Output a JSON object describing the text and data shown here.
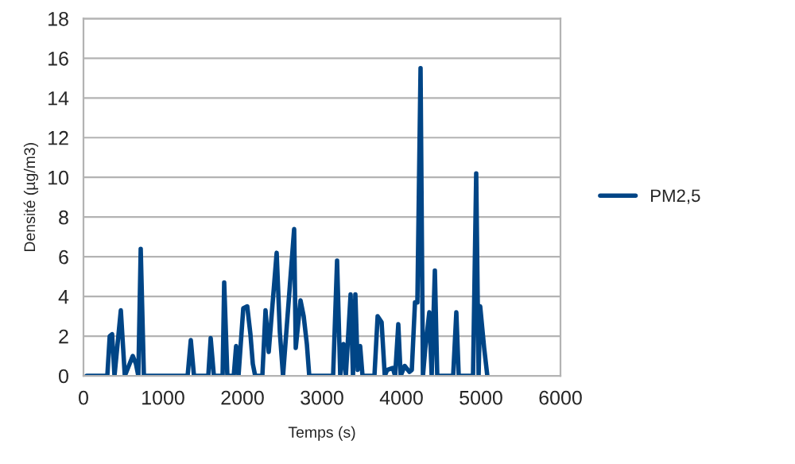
{
  "chart_data": {
    "type": "line",
    "xlabel": "Temps (s)",
    "ylabel": "Densité (µg/m3)",
    "xlim": [
      0,
      6000
    ],
    "xticks": [
      0,
      1000,
      2000,
      3000,
      4000,
      5000,
      6000
    ],
    "ylim": [
      0,
      18
    ],
    "yticks": [
      0,
      2,
      4,
      6,
      8,
      10,
      12,
      14,
      16,
      18
    ],
    "grid": "y",
    "legend": "right",
    "marker": "none",
    "line_style": "solid",
    "series": [
      {
        "name": "PM2,5",
        "color": "#004586",
        "x": [
          40,
          300,
          330,
          360,
          390,
          470,
          520,
          620,
          660,
          690,
          720,
          760,
          1310,
          1350,
          1390,
          1570,
          1600,
          1640,
          1750,
          1770,
          1810,
          1890,
          1920,
          1950,
          2010,
          2060,
          2100,
          2130,
          2160,
          2250,
          2290,
          2330,
          2430,
          2470,
          2510,
          2650,
          2670,
          2730,
          2770,
          2810,
          2840,
          3140,
          3190,
          3230,
          3270,
          3300,
          3360,
          3390,
          3420,
          3450,
          3480,
          3510,
          3660,
          3700,
          3750,
          3790,
          3820,
          3890,
          3920,
          3960,
          3990,
          4040,
          4100,
          4130,
          4170,
          4200,
          4240,
          4270,
          4300,
          4350,
          4380,
          4420,
          4450,
          4650,
          4690,
          4720,
          4900,
          4940,
          4970,
          4990,
          5040,
          5080
        ],
        "values": [
          0,
          0,
          2.0,
          2.1,
          0,
          3.3,
          0,
          1.0,
          0.6,
          0,
          6.4,
          0,
          0,
          1.8,
          0,
          0,
          1.9,
          0,
          0,
          4.7,
          0,
          0,
          1.5,
          0,
          3.4,
          3.5,
          2.1,
          0.6,
          0,
          0,
          3.3,
          1.2,
          6.2,
          2.2,
          0,
          7.4,
          1.4,
          3.8,
          3.0,
          1.6,
          0,
          0,
          5.8,
          0,
          1.6,
          0,
          4.1,
          0,
          4.1,
          0.3,
          1.5,
          0,
          0,
          3.0,
          2.7,
          0,
          0.3,
          0.4,
          0,
          2.6,
          0,
          0.5,
          0.2,
          0.3,
          3.7,
          3.7,
          15.5,
          0,
          1.4,
          3.2,
          0,
          5.3,
          0,
          0,
          3.2,
          0,
          0,
          10.2,
          0,
          3.5,
          1.4,
          0
        ]
      }
    ]
  }
}
